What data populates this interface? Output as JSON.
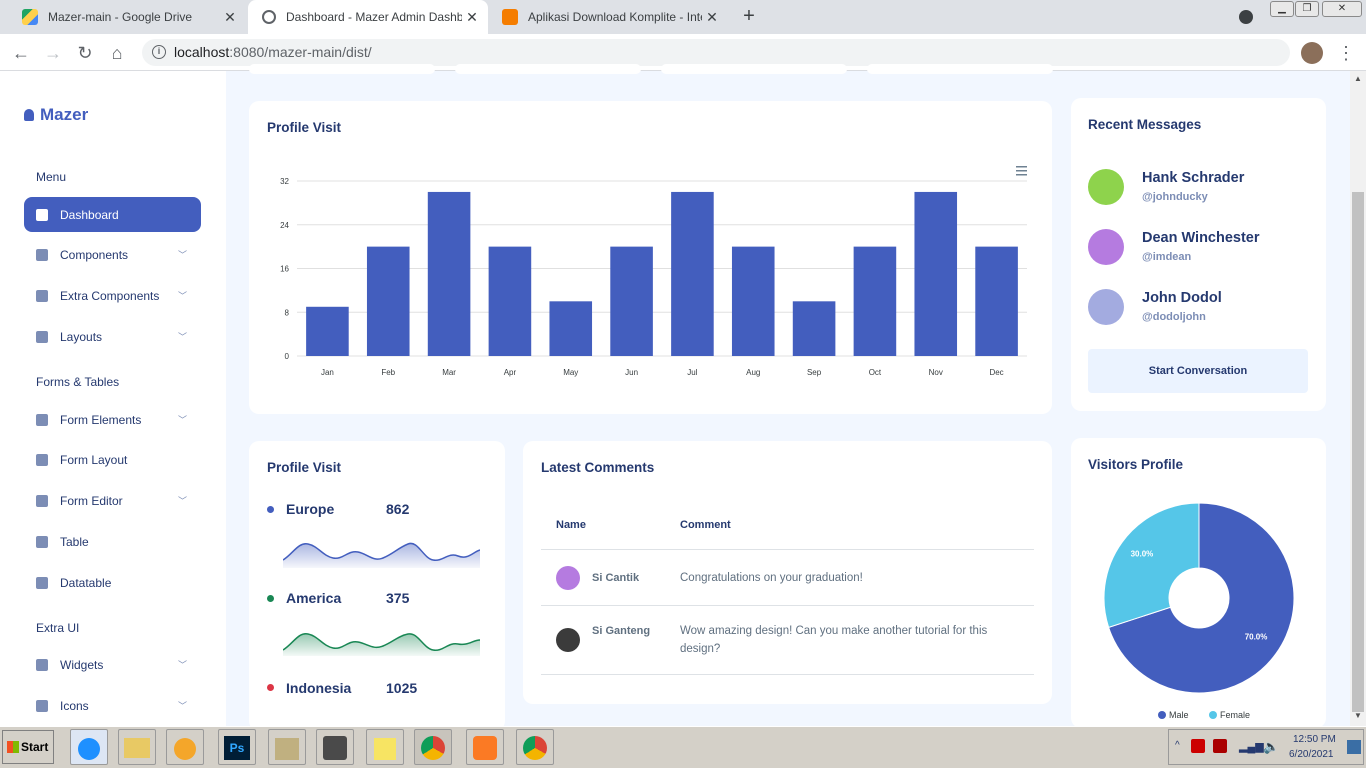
{
  "browser": {
    "tabs": [
      {
        "title": "Mazer-main - Google Drive",
        "close": "✕",
        "favicon": "drive-icon"
      },
      {
        "title": "Dashboard - Mazer Admin Dashboard",
        "close": "✕",
        "favicon": "globe-icon"
      },
      {
        "title": "Aplikasi Download Komplite - Internet",
        "close": "✕",
        "favicon": "blogger-icon"
      }
    ],
    "new_tab": "+",
    "url_host": "localhost",
    "url_path": ":8080/mazer-main/dist/"
  },
  "sidebar": {
    "logo": "Mazer",
    "sections": [
      "Menu",
      "Forms & Tables",
      "Extra UI"
    ],
    "items": [
      {
        "label": "Dashboard",
        "icon": "grid-icon",
        "active": true
      },
      {
        "label": "Components",
        "icon": "stack-icon"
      },
      {
        "label": "Extra Components",
        "icon": "collection-icon"
      },
      {
        "label": "Layouts",
        "icon": "layout-icon"
      },
      {
        "label": "Form Elements",
        "icon": "hexagon-icon"
      },
      {
        "label": "Form Layout",
        "icon": "file-icon"
      },
      {
        "label": "Form Editor",
        "icon": "pen-icon"
      },
      {
        "label": "Table",
        "icon": "table-icon"
      },
      {
        "label": "Datatable",
        "icon": "file-spreadsheet-icon"
      },
      {
        "label": "Widgets",
        "icon": "pentagon-icon"
      },
      {
        "label": "Icons",
        "icon": "droplet-icon"
      }
    ]
  },
  "profile_visit": {
    "title": "Profile Visit"
  },
  "chart_data": [
    {
      "type": "bar",
      "title": "Profile Visit",
      "categories": [
        "Jan",
        "Feb",
        "Mar",
        "Apr",
        "May",
        "Jun",
        "Jul",
        "Aug",
        "Sep",
        "Oct",
        "Nov",
        "Dec"
      ],
      "values": [
        9,
        20,
        30,
        20,
        10,
        20,
        30,
        20,
        10,
        20,
        30,
        20
      ],
      "yticks": [
        "0",
        "8",
        "16",
        "24",
        "32"
      ],
      "ylim": [
        0,
        32
      ],
      "grid": true,
      "color": "#435ebe"
    },
    {
      "type": "pie",
      "title": "Visitors Profile",
      "labels": [
        "Male",
        "Female"
      ],
      "values": [
        70,
        30
      ],
      "slice_labels": [
        "70.0%",
        "30.0%"
      ],
      "colors": [
        "#435ebe",
        "#55c6e8"
      ],
      "legend": "bottom"
    }
  ],
  "messages": {
    "title": "Recent Messages",
    "items": [
      {
        "name": "Hank Schrader",
        "handle": "@johnducky",
        "avatar_color": "#8ed34c"
      },
      {
        "name": "Dean Winchester",
        "handle": "@imdean",
        "avatar_color": "#b57be0"
      },
      {
        "name": "John Dodol",
        "handle": "@dodoljohn",
        "avatar_color": "#a3abe0"
      }
    ],
    "button": "Start Conversation"
  },
  "regions": {
    "title": "Profile Visit",
    "items": [
      {
        "name": "Europe",
        "value": "862",
        "color": "#435ebe"
      },
      {
        "name": "America",
        "value": "375",
        "color": "#198754"
      },
      {
        "name": "Indonesia",
        "value": "1025",
        "color": "#dc3545"
      }
    ]
  },
  "comments": {
    "title": "Latest Comments",
    "headers": [
      "Name",
      "Comment"
    ],
    "rows": [
      {
        "name": "Si Cantik",
        "text": "Congratulations on your graduation!"
      },
      {
        "name": "Si Ganteng",
        "text": "Wow amazing design! Can you make another tutorial for this design?"
      }
    ]
  },
  "visitors": {
    "title": "Visitors Profile",
    "legend": [
      "Male",
      "Female"
    ]
  },
  "taskbar": {
    "start": "Start",
    "time": "12:50 PM",
    "date": "6/20/2021"
  }
}
